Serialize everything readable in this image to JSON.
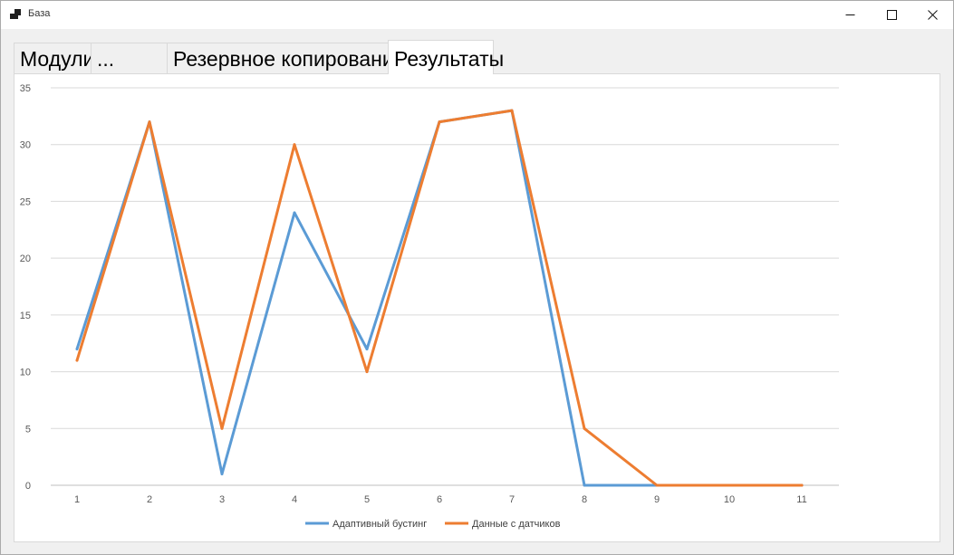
{
  "window": {
    "title": "База",
    "icon": "app-window-icon",
    "controls": [
      "minimize-icon",
      "maximize-icon",
      "close-icon"
    ]
  },
  "tabs": [
    {
      "label": "Модули"
    },
    {
      "label": "..."
    },
    {
      "label": "Резервное копирование"
    },
    {
      "label": "Результаты",
      "active": true
    }
  ],
  "chart_data": {
    "type": "line",
    "x": [
      1,
      2,
      3,
      4,
      5,
      6,
      7,
      8,
      9,
      10,
      11
    ],
    "ylim": [
      0,
      35
    ],
    "yticks": [
      0,
      5,
      10,
      15,
      20,
      25,
      30,
      35
    ],
    "grid": true,
    "legend_position": "bottom",
    "series": [
      {
        "name": "Адаптивный бустинг",
        "color": "#5b9bd5",
        "values": [
          12,
          32,
          1,
          24,
          12,
          32,
          33,
          0,
          0,
          0,
          0
        ]
      },
      {
        "name": "Данные с датчиков",
        "color": "#ed7d31",
        "values": [
          11,
          32,
          5,
          30,
          10,
          32,
          33,
          5,
          0,
          0,
          0
        ]
      }
    ]
  }
}
